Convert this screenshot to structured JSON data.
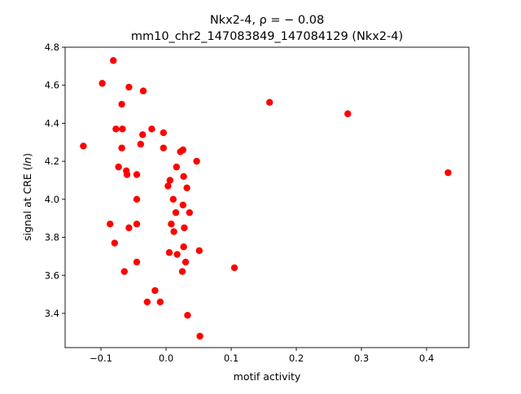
{
  "chart_data": {
    "type": "scatter",
    "title_line1": "Nkx2-4, ρ = − 0.08",
    "title_line2": "mm10_chr2_147083849_147084129 (Nkx2-4)",
    "xlabel": "motif activity",
    "ylabel": "signal at CRE (ln)",
    "xlim": [
      -0.155,
      0.465
    ],
    "ylim": [
      3.22,
      4.8
    ],
    "x_ticks": [
      -0.1,
      0.0,
      0.1,
      0.2,
      0.3,
      0.4
    ],
    "x_tick_labels": [
      "−0.1",
      "0.0",
      "0.1",
      "0.2",
      "0.3",
      "0.4"
    ],
    "y_ticks": [
      3.4,
      3.6,
      3.8,
      4.0,
      4.2,
      4.4,
      4.6,
      4.8
    ],
    "y_tick_labels": [
      "3.4",
      "3.6",
      "3.8",
      "4.0",
      "4.2",
      "4.4",
      "4.6",
      "4.8"
    ],
    "grid": false,
    "marker_color": "#ff0000",
    "points": [
      {
        "x": -0.127,
        "y": 4.28
      },
      {
        "x": -0.098,
        "y": 4.61
      },
      {
        "x": -0.081,
        "y": 4.73
      },
      {
        "x": -0.086,
        "y": 3.87
      },
      {
        "x": -0.079,
        "y": 3.77
      },
      {
        "x": -0.077,
        "y": 4.37
      },
      {
        "x": -0.073,
        "y": 4.17
      },
      {
        "x": -0.068,
        "y": 4.5
      },
      {
        "x": -0.067,
        "y": 4.37
      },
      {
        "x": -0.068,
        "y": 4.27
      },
      {
        "x": -0.064,
        "y": 3.62
      },
      {
        "x": -0.061,
        "y": 4.15
      },
      {
        "x": -0.06,
        "y": 4.13
      },
      {
        "x": -0.057,
        "y": 4.59
      },
      {
        "x": -0.057,
        "y": 3.85
      },
      {
        "x": -0.045,
        "y": 4.13
      },
      {
        "x": -0.045,
        "y": 4.0
      },
      {
        "x": -0.045,
        "y": 3.87
      },
      {
        "x": -0.045,
        "y": 3.67
      },
      {
        "x": -0.039,
        "y": 4.29
      },
      {
        "x": -0.036,
        "y": 4.34
      },
      {
        "x": -0.035,
        "y": 4.57
      },
      {
        "x": -0.022,
        "y": 4.37
      },
      {
        "x": -0.017,
        "y": 3.52
      },
      {
        "x": -0.029,
        "y": 3.46
      },
      {
        "x": -0.009,
        "y": 3.46
      },
      {
        "x": -0.004,
        "y": 4.35
      },
      {
        "x": -0.004,
        "y": 4.27
      },
      {
        "x": 0.003,
        "y": 4.07
      },
      {
        "x": 0.006,
        "y": 4.1
      },
      {
        "x": 0.005,
        "y": 3.72
      },
      {
        "x": 0.008,
        "y": 3.87
      },
      {
        "x": 0.011,
        "y": 4.0
      },
      {
        "x": 0.012,
        "y": 3.83
      },
      {
        "x": 0.015,
        "y": 3.93
      },
      {
        "x": 0.016,
        "y": 4.17
      },
      {
        "x": 0.017,
        "y": 3.71
      },
      {
        "x": 0.022,
        "y": 4.25
      },
      {
        "x": 0.025,
        "y": 3.62
      },
      {
        "x": 0.026,
        "y": 4.26
      },
      {
        "x": 0.027,
        "y": 4.12
      },
      {
        "x": 0.026,
        "y": 3.97
      },
      {
        "x": 0.028,
        "y": 3.85
      },
      {
        "x": 0.027,
        "y": 3.75
      },
      {
        "x": 0.03,
        "y": 3.67
      },
      {
        "x": 0.032,
        "y": 4.06
      },
      {
        "x": 0.036,
        "y": 3.93
      },
      {
        "x": 0.033,
        "y": 3.39
      },
      {
        "x": 0.047,
        "y": 4.2
      },
      {
        "x": 0.051,
        "y": 3.73
      },
      {
        "x": 0.052,
        "y": 3.28
      },
      {
        "x": 0.105,
        "y": 3.64
      },
      {
        "x": 0.159,
        "y": 4.51
      },
      {
        "x": 0.279,
        "y": 4.45
      },
      {
        "x": 0.433,
        "y": 4.14
      }
    ]
  }
}
